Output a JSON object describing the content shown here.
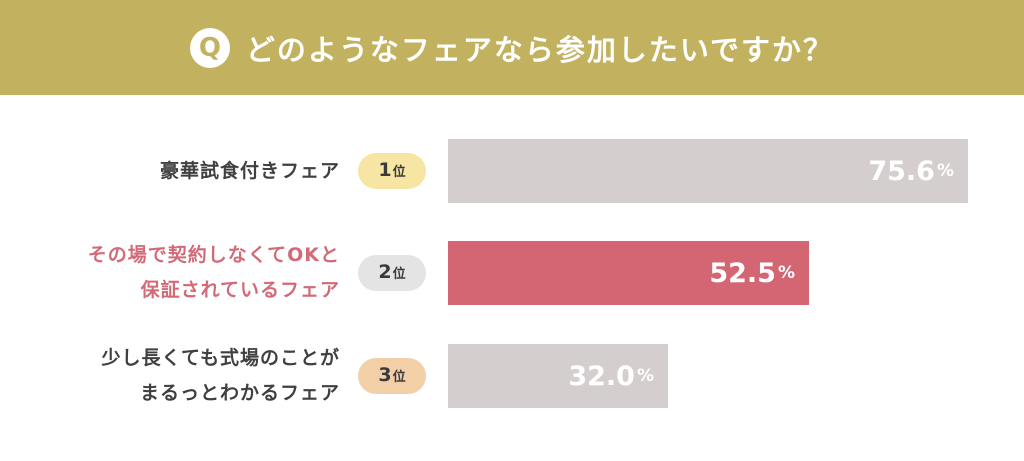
{
  "header": {
    "q_mark": "Q",
    "title": "どのようなフェアなら参加したいですか？",
    "color": "#c2b25f"
  },
  "rank_suffix": "位",
  "percent_sign": "%",
  "chart_data": {
    "type": "bar",
    "orientation": "horizontal",
    "title": "どのようなフェアなら参加したいですか？",
    "xlim": [
      0,
      100
    ],
    "unit": "%",
    "categories": [
      "豪華試食付きフェア",
      "その場で契約しなくてOKと保証されているフェア",
      "少し長くても式場のことがまるっとわかるフェア"
    ],
    "values": [
      75.6,
      52.5,
      32.0
    ],
    "items": [
      {
        "rank": "1",
        "label_lines": [
          "豪華試食付きフェア"
        ],
        "value": 75.6,
        "value_text": "75.6",
        "bar_color": "#d5cecf",
        "rank_color": "#f7e6a3",
        "label_color": "#404040"
      },
      {
        "rank": "2",
        "label_lines": [
          "その場で契約しなくてOKと",
          "保証されているフェア"
        ],
        "value": 52.5,
        "value_text": "52.5",
        "bar_color": "#d46674",
        "rank_color": "#e4e4e4",
        "label_color": "#d26a78"
      },
      {
        "rank": "3",
        "label_lines": [
          "少し長くても式場のことが",
          "まるっとわかるフェア"
        ],
        "value": 32.0,
        "value_text": "32.0",
        "bar_color": "#d5cecf",
        "rank_color": "#f3cfa8",
        "label_color": "#404040"
      }
    ]
  }
}
